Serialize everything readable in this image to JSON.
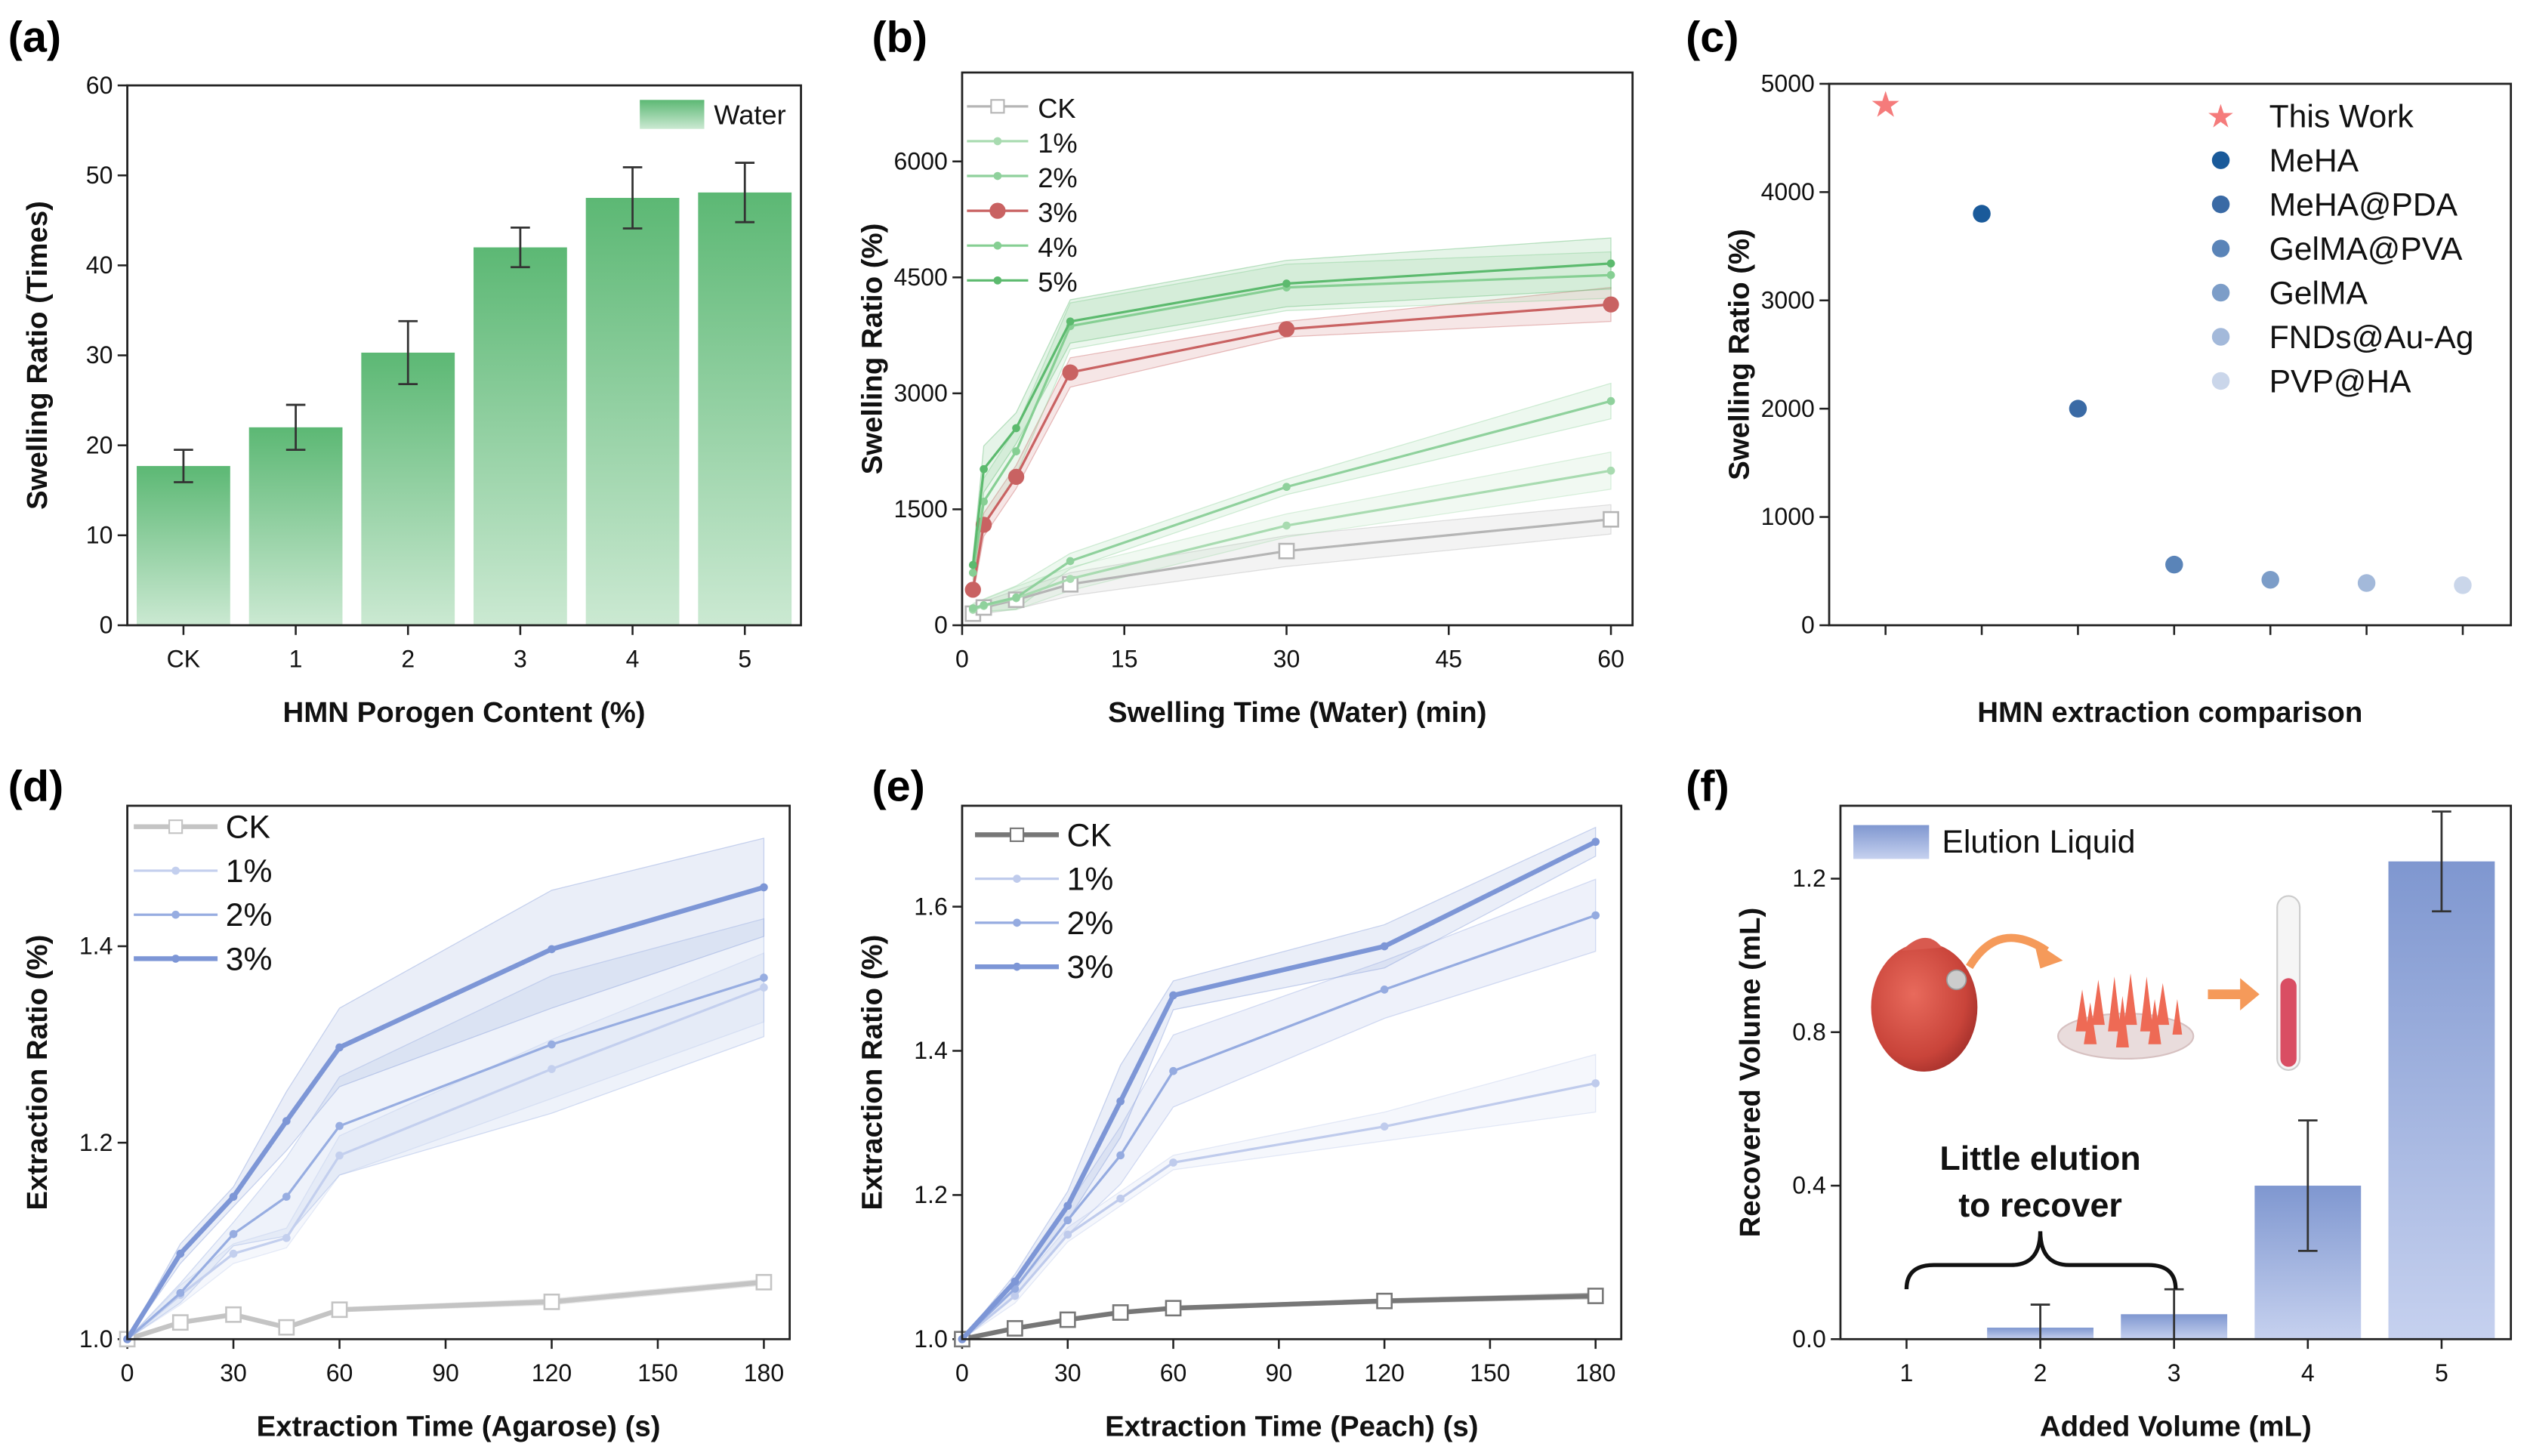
{
  "chart_data": [
    {
      "panel": "(a)",
      "type": "bar",
      "categories": [
        "CK",
        "1",
        "2",
        "3",
        "4",
        "5"
      ],
      "values": [
        17.7,
        22.0,
        30.3,
        42.0,
        47.5,
        48.1
      ],
      "errors": [
        1.8,
        2.5,
        3.5,
        2.2,
        3.4,
        3.3
      ],
      "xlabel": "HMN Porogen Content (%)",
      "ylabel": "Swelling Ratio (Times)",
      "ylim": [
        0,
        60
      ],
      "yticks": [
        "0",
        "10",
        "20",
        "30",
        "40",
        "50",
        "60"
      ],
      "legend": [
        "Water"
      ],
      "legend_position": "top-right",
      "colors": {
        "bar_top": "#5cb874",
        "bar_bottom": "#cbe9d2"
      }
    },
    {
      "panel": "(b)",
      "type": "line",
      "x": [
        1,
        2,
        5,
        10,
        30,
        60
      ],
      "series": [
        {
          "name": "CK",
          "values": [
            150,
            230,
            330,
            530,
            960,
            1370
          ],
          "errors": [
            60,
            80,
            120,
            150,
            200,
            190
          ],
          "color": "#b5b5b5",
          "marker": "square"
        },
        {
          "name": "1%",
          "values": [
            200,
            250,
            350,
            600,
            1290,
            2000
          ],
          "errors": [
            60,
            80,
            150,
            150,
            150,
            240
          ],
          "color": "#a8dbb0",
          "marker": "dot"
        },
        {
          "name": "2%",
          "values": [
            220,
            260,
            360,
            830,
            1790,
            2900
          ],
          "errors": [
            60,
            80,
            150,
            100,
            100,
            230
          ],
          "color": "#8fd19c",
          "marker": "dot"
        },
        {
          "name": "3%",
          "values": [
            460,
            1300,
            1920,
            3270,
            3830,
            4150
          ],
          "errors": [
            80,
            150,
            150,
            190,
            100,
            220
          ],
          "color": "#c96262",
          "marker": "circle"
        },
        {
          "name": "4%",
          "values": [
            680,
            1600,
            2250,
            3870,
            4370,
            4530
          ],
          "errors": [
            100,
            300,
            300,
            300,
            300,
            300
          ],
          "color": "#86cf93",
          "marker": "dot"
        },
        {
          "name": "5%",
          "values": [
            780,
            2020,
            2550,
            3930,
            4420,
            4680
          ],
          "errors": [
            100,
            300,
            200,
            280,
            300,
            330
          ],
          "color": "#5cba6e",
          "marker": "dot"
        }
      ],
      "xlabel": "Swelling Time (Water) (min)",
      "ylabel": "Swelling Ratio (%)",
      "xlim": [
        0,
        62
      ],
      "ylim": [
        0,
        7150
      ],
      "xticks": [
        "0",
        "15",
        "30",
        "45",
        "60"
      ],
      "yticks": [
        "0",
        "1500",
        "3000",
        "4500",
        "6000"
      ],
      "legend_position": "top-left"
    },
    {
      "panel": "(c)",
      "type": "scatter",
      "categories": [
        "This Work",
        "MeHA",
        "MeHA@PDA",
        "GelMA@PVA",
        "GelMA",
        "FNDs@Au-Ag",
        "PVP@HA"
      ],
      "values": [
        4800,
        3800,
        2000,
        560,
        420,
        390,
        370
      ],
      "colors": [
        "#f57b7b",
        "#1a5a9a",
        "#3a6aa5",
        "#5a84b8",
        "#7c9dc8",
        "#a3b9da",
        "#cad6ea"
      ],
      "xlabel": "HMN extraction comparison",
      "ylabel": "Swelling Ratio (%)",
      "ylim": [
        0,
        5000
      ],
      "yticks": [
        "0",
        "1000",
        "2000",
        "3000",
        "4000",
        "5000"
      ],
      "legend_position": "top-right"
    },
    {
      "panel": "(d)",
      "type": "line",
      "x": [
        0,
        15,
        30,
        45,
        60,
        120,
        180
      ],
      "series": [
        {
          "name": "CK",
          "values": [
            1.0,
            1.017,
            1.025,
            1.012,
            1.03,
            1.038,
            1.058
          ],
          "errors": [
            0,
            0.002,
            0.002,
            0.002,
            0.002,
            0.003,
            0.003
          ],
          "color": "#c4c4c4",
          "marker": "square"
        },
        {
          "name": "1%",
          "values": [
            1.0,
            1.045,
            1.087,
            1.103,
            1.187,
            1.275,
            1.358
          ],
          "errors": [
            0,
            0.01,
            0.01,
            0.01,
            0.02,
            0.03,
            0.035
          ],
          "color": "#c3cfee",
          "marker": "dot"
        },
        {
          "name": "2%",
          "values": [
            1.0,
            1.047,
            1.107,
            1.145,
            1.217,
            1.3,
            1.368
          ],
          "errors": [
            0,
            0.01,
            0.012,
            0.04,
            0.05,
            0.07,
            0.06
          ],
          "color": "#97ade1",
          "marker": "dot"
        },
        {
          "name": "3%",
          "values": [
            1.0,
            1.087,
            1.145,
            1.222,
            1.297,
            1.397,
            1.46
          ],
          "errors": [
            0,
            0.01,
            0.01,
            0.03,
            0.04,
            0.06,
            0.05
          ],
          "color": "#7d96d6",
          "marker": "dot"
        }
      ],
      "xlabel": "Extraction Time (Agarose) (s)",
      "ylabel": "Extraction Ratio (%)",
      "xlim": [
        0,
        187.3
      ],
      "ylim": [
        1.0,
        1.543
      ],
      "xticks": [
        "0",
        "30",
        "60",
        "90",
        "120",
        "150",
        "180"
      ],
      "yticks": [
        "1.0",
        "1.2",
        "1.4"
      ],
      "legend_position": "top-left"
    },
    {
      "panel": "(e)",
      "type": "line",
      "x": [
        0,
        15,
        30,
        45,
        60,
        120,
        180
      ],
      "series": [
        {
          "name": "CK",
          "values": [
            1.0,
            1.015,
            1.027,
            1.037,
            1.043,
            1.053,
            1.06
          ],
          "errors": [
            0,
            0.002,
            0.002,
            0.002,
            0.002,
            0.003,
            0.004
          ],
          "color": "#777777",
          "marker": "square"
        },
        {
          "name": "1%",
          "values": [
            1.0,
            1.06,
            1.145,
            1.195,
            1.245,
            1.295,
            1.355
          ],
          "errors": [
            0,
            0.01,
            0.01,
            0.01,
            0.01,
            0.02,
            0.04
          ],
          "color": "#bfcbec",
          "marker": "dot"
        },
        {
          "name": "2%",
          "values": [
            1.0,
            1.07,
            1.165,
            1.255,
            1.372,
            1.485,
            1.588
          ],
          "errors": [
            0,
            0.01,
            0.02,
            0.04,
            0.05,
            0.04,
            0.05
          ],
          "color": "#95abe0",
          "marker": "dot"
        },
        {
          "name": "3%",
          "values": [
            1.0,
            1.08,
            1.185,
            1.33,
            1.477,
            1.545,
            1.69
          ],
          "errors": [
            0,
            0.01,
            0.02,
            0.05,
            0.02,
            0.03,
            0.02
          ],
          "color": "#7d96d6",
          "marker": "dot"
        }
      ],
      "xlabel": "Extraction Time (Peach) (s)",
      "ylabel": "Extraction Ratio (%)",
      "xlim": [
        0,
        187.3
      ],
      "ylim": [
        1.0,
        1.74
      ],
      "xticks": [
        "0",
        "30",
        "60",
        "90",
        "120",
        "150",
        "180"
      ],
      "yticks": [
        "1.0",
        "1.2",
        "1.4",
        "1.6"
      ],
      "legend_position": "top-left"
    },
    {
      "panel": "(f)",
      "type": "bar",
      "categories": [
        "1",
        "2",
        "3",
        "4",
        "5"
      ],
      "values": [
        0.0,
        0.03,
        0.065,
        0.4,
        1.245
      ],
      "errors": [
        0.0,
        0.06,
        0.065,
        0.17,
        0.13
      ],
      "xlabel": "Added Volume (mL)",
      "ylabel": "Recovered Volume (mL)",
      "ylim": [
        0,
        1.39
      ],
      "yticks": [
        "0.0",
        "0.4",
        "0.8",
        "1.2"
      ],
      "legend": [
        "Elution Liquid"
      ],
      "legend_position": "top-left",
      "annotation": [
        "Little elution",
        "to recover"
      ],
      "colors": {
        "bar_top": "#7f97d0",
        "bar_bottom": "#c6d1ef"
      }
    }
  ]
}
